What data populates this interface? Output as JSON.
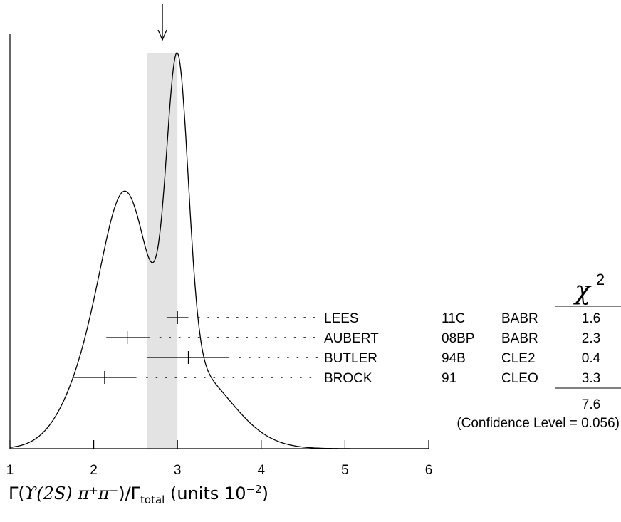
{
  "chart_data": {
    "type": "ideogram",
    "xlim": [
      1,
      6
    ],
    "x_ticks": [
      "1",
      "2",
      "3",
      "4",
      "5",
      "6"
    ],
    "average": 2.82,
    "band": [
      2.64,
      3.0
    ],
    "measurements": [
      {
        "name": "LEES",
        "ref": "11C",
        "exp": "BABR",
        "value": 3.0,
        "err_lo": 0.13,
        "err_hi": 0.13,
        "chi2": "1.6"
      },
      {
        "name": "AUBERT",
        "ref": "08BP",
        "exp": "BABR",
        "value": 2.4,
        "err_lo": 0.25,
        "err_hi": 0.27,
        "chi2": "2.3"
      },
      {
        "name": "BUTLER",
        "ref": "94B",
        "exp": "CLE2",
        "value": 3.13,
        "err_lo": 0.49,
        "err_hi": 0.49,
        "chi2": "0.4"
      },
      {
        "name": "BROCK",
        "ref": "91",
        "exp": "CLEO",
        "value": 2.13,
        "err_lo": 0.38,
        "err_hi": 0.38,
        "chi2": "3.3"
      }
    ],
    "chi2_header": "χ",
    "chi2_sup": "2",
    "chi2_total": "7.6",
    "confidence_note": "(Confidence Level = 0.056)",
    "xlabel": {
      "gamma": "Γ",
      "upsilon": "ϒ(2S)",
      "pions": "π⁺π⁻",
      "slash": "/Γ",
      "sub": "total",
      "units": " (units 10",
      "exp": "−2",
      "close": ")"
    }
  }
}
